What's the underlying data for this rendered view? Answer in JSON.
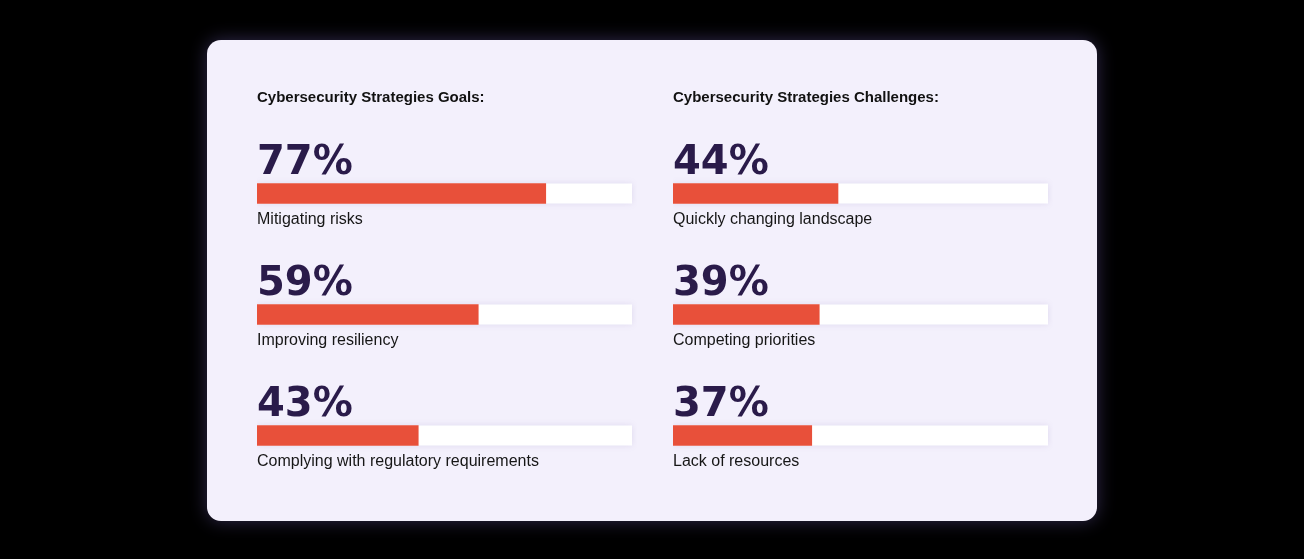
{
  "chart_data": [
    {
      "type": "bar",
      "orientation": "horizontal",
      "title": "Cybersecurity Strategies Goals:",
      "categories": [
        "Mitigating risks",
        "Improving resiliency",
        "Complying with regulatory requirements"
      ],
      "values": [
        77,
        59,
        43
      ],
      "value_labels": [
        "77%",
        "59%",
        "43%"
      ],
      "color": "#e8503a",
      "xlim": [
        0,
        100
      ],
      "tick_labels": false,
      "legend": false
    },
    {
      "type": "bar",
      "orientation": "horizontal",
      "title": "Cybersecurity Strategies Challenges:",
      "categories": [
        "Quickly changing landscape",
        "Competing priorities",
        "Lack of resources"
      ],
      "values": [
        44,
        39,
        37
      ],
      "value_labels": [
        "44%",
        "39%",
        "37%"
      ],
      "color": "#e8503a",
      "xlim": [
        0,
        100
      ],
      "tick_labels": false,
      "legend": false
    }
  ]
}
